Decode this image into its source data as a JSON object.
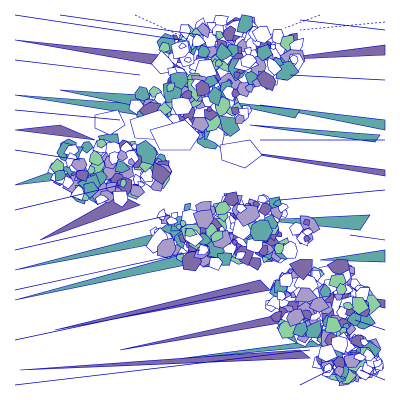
{
  "colors": {
    "background": "#ffffff",
    "edge": "#0000cc",
    "fill_teal": "#5fa8a6",
    "fill_purple": "#7d6aa6",
    "fill_green": "#8fd19e",
    "fill_light_purple": "#a89cc8"
  },
  "figure": {
    "kind": "voronoi-mesh",
    "dashed_edges_present": true,
    "dense_node_clusters": 4
  }
}
